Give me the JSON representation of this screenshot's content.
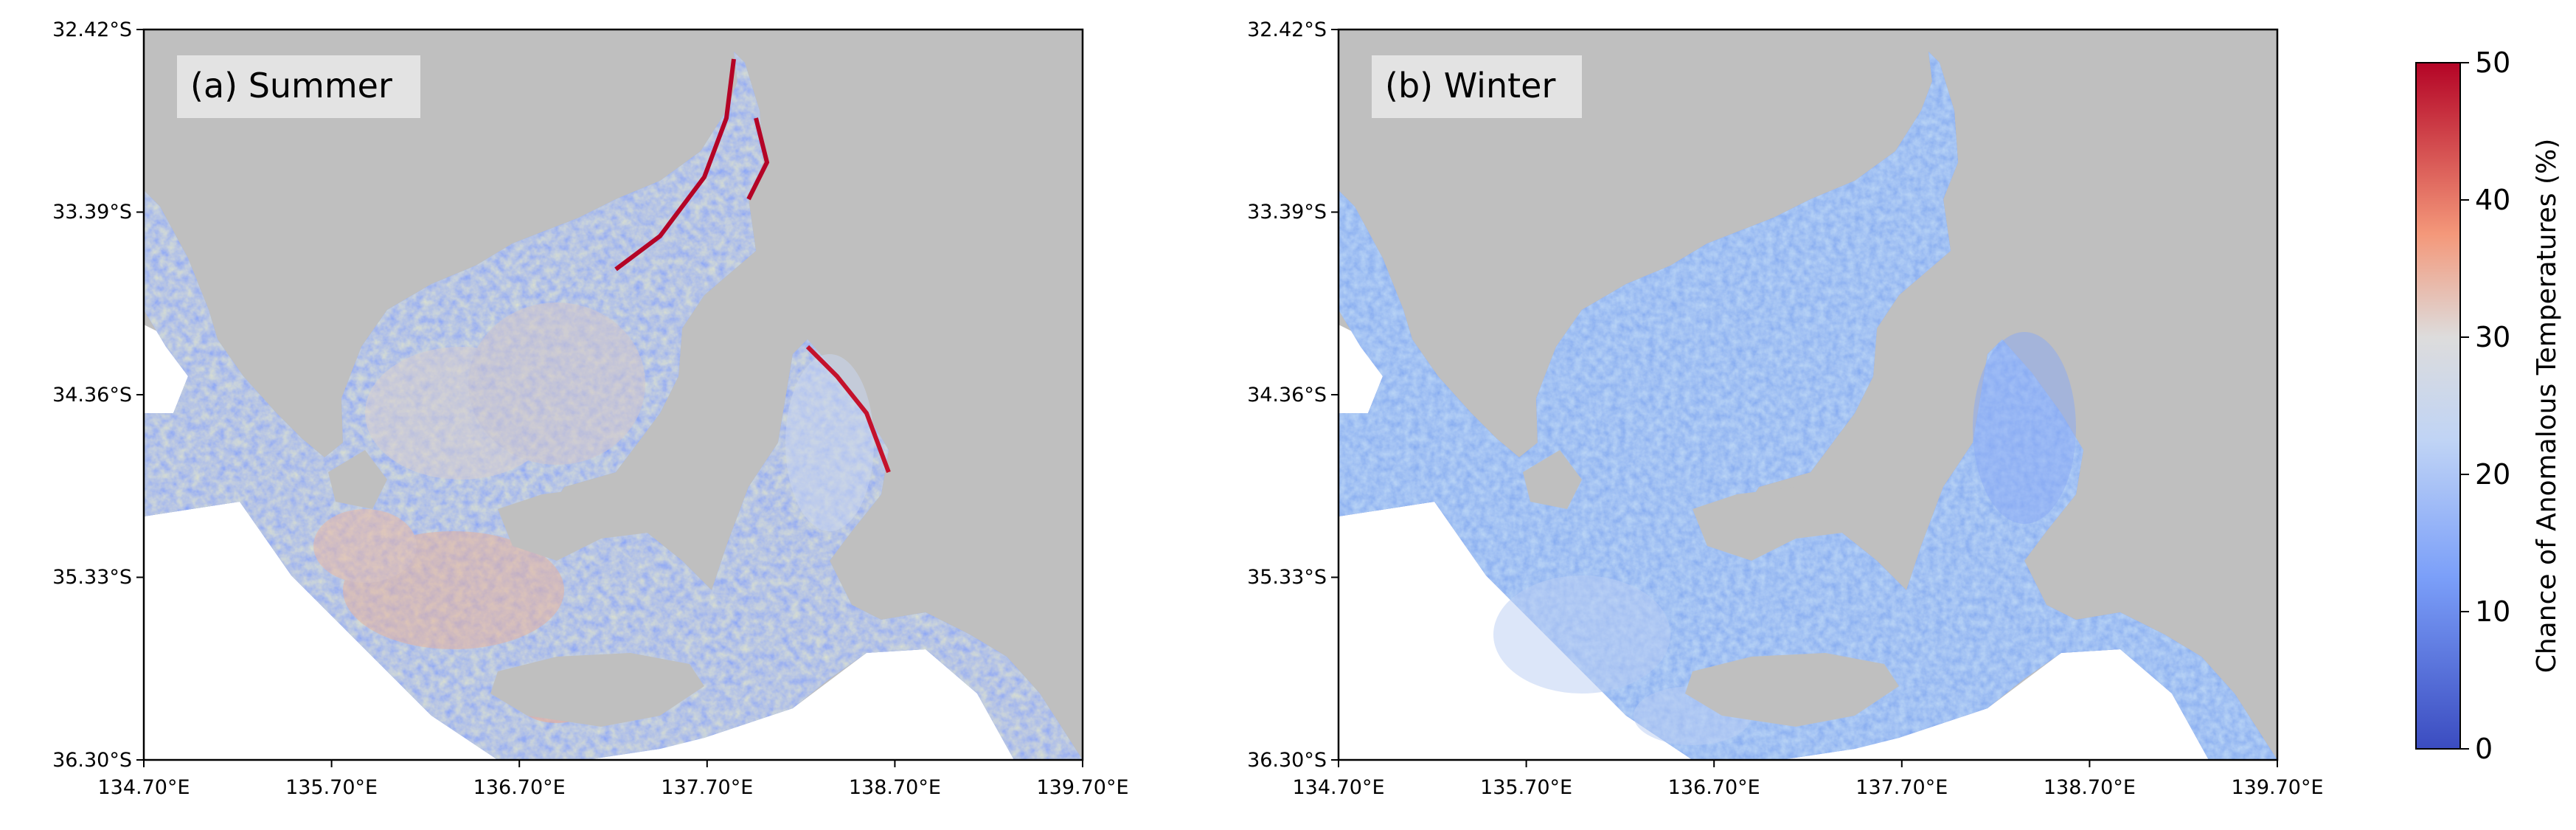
{
  "colors": {
    "land": "#bfbfbf",
    "outside": "#ffffff",
    "water_base": "#6b8ef0",
    "colormap": [
      "#3b4cc0",
      "#8db0fe",
      "#dddddd",
      "#f49a7b",
      "#b40426"
    ]
  },
  "panels": [
    {
      "id": "summer",
      "label": "(a) Summer",
      "y_ticks": [
        "32.42°S",
        "33.39°S",
        "34.36°S",
        "35.33°S",
        "36.30°S"
      ],
      "x_ticks": [
        "134.70°E",
        "135.70°E",
        "136.70°E",
        "137.70°E",
        "138.70°E",
        "139.70°E"
      ]
    },
    {
      "id": "winter",
      "label": "(b) Winter",
      "y_ticks": [
        "32.42°S",
        "33.39°S",
        "34.36°S",
        "35.33°S",
        "36.30°S"
      ],
      "x_ticks": [
        "134.70°E",
        "135.70°E",
        "136.70°E",
        "137.70°E",
        "138.70°E",
        "139.70°E"
      ]
    }
  ],
  "colorbar": {
    "label": "Chance of Anomalous Temperatures (%)",
    "ticks": [
      "0",
      "10",
      "20",
      "30",
      "40",
      "50"
    ],
    "range": [
      0,
      50
    ]
  }
}
